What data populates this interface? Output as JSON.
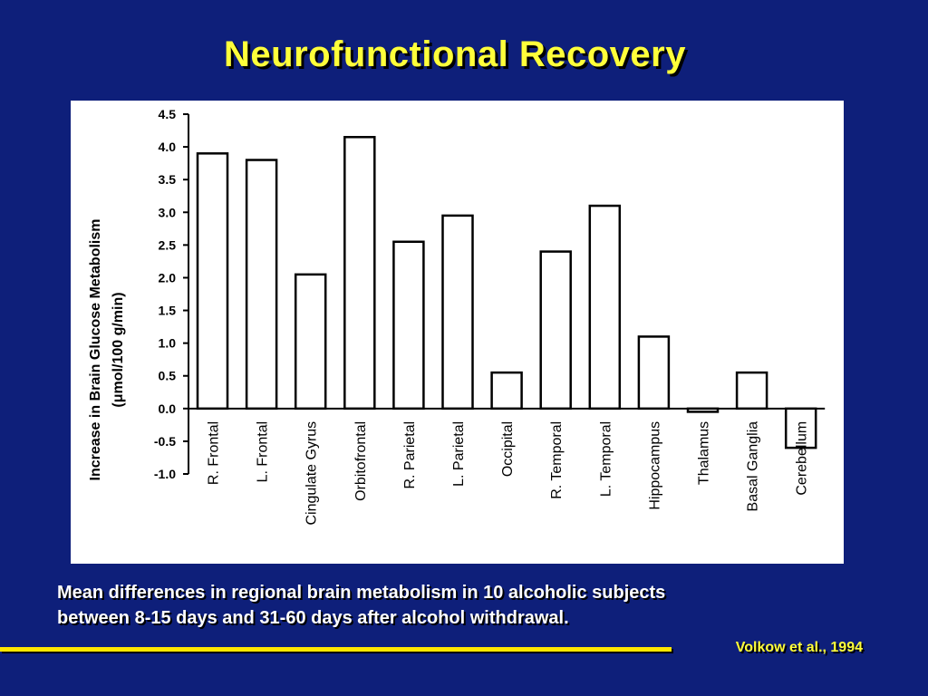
{
  "slide": {
    "title": "Neurofunctional Recovery",
    "caption_line1": "Mean differences in regional brain metabolism in 10 alcoholic subjects",
    "caption_line2": "between 8-15 days and 31-60 days after alcohol withdrawal.",
    "citation": "Volkow et al., 1994"
  },
  "colors": {
    "background": "#0e1f7a",
    "title": "#ffff3a",
    "rule": "#ffe600",
    "chart_background": "#ffffff",
    "bar_outline": "#000000"
  },
  "chart_data": {
    "type": "bar",
    "ylabel_line1": "Increase in Brain Glucose Metabolism",
    "ylabel_line2": "(μmol/100 g/min)",
    "ylim": [
      -1.0,
      4.5
    ],
    "yticks": [
      "4.5",
      "4.0",
      "3.5",
      "3.0",
      "2.5",
      "2.0",
      "1.5",
      "1.0",
      "0.5",
      "0.0",
      "-0.5",
      "-1.0"
    ],
    "ytick_values": [
      4.5,
      4.0,
      3.5,
      3.0,
      2.5,
      2.0,
      1.5,
      1.0,
      0.5,
      0.0,
      -0.5,
      -1.0
    ],
    "categories": [
      "R. Frontal",
      "L. Frontal",
      "Cingulate Gyrus",
      "Orbitofrontal",
      "R. Parietal",
      "L. Parietal",
      "Occipital",
      "R. Temporal",
      "L. Temporal",
      "Hippocampus",
      "Thalamus",
      "Basal Ganglia",
      "Cerebellum"
    ],
    "values": [
      3.9,
      3.8,
      2.05,
      4.15,
      2.55,
      2.95,
      0.55,
      2.4,
      3.1,
      1.1,
      -0.05,
      0.55,
      -0.6
    ],
    "grid": false,
    "legend": "none"
  }
}
